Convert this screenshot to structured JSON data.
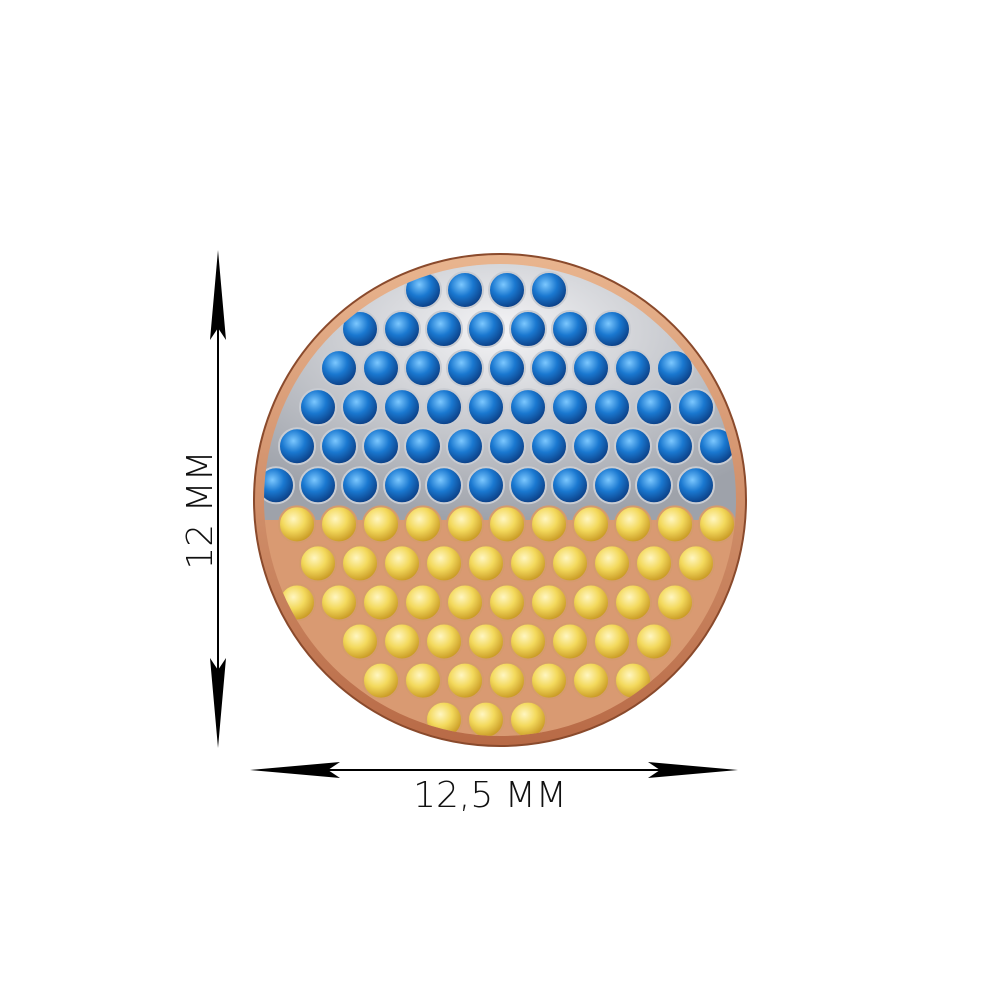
{
  "dimensions": {
    "height": "12 MM",
    "width": "12,5 MM"
  }
}
